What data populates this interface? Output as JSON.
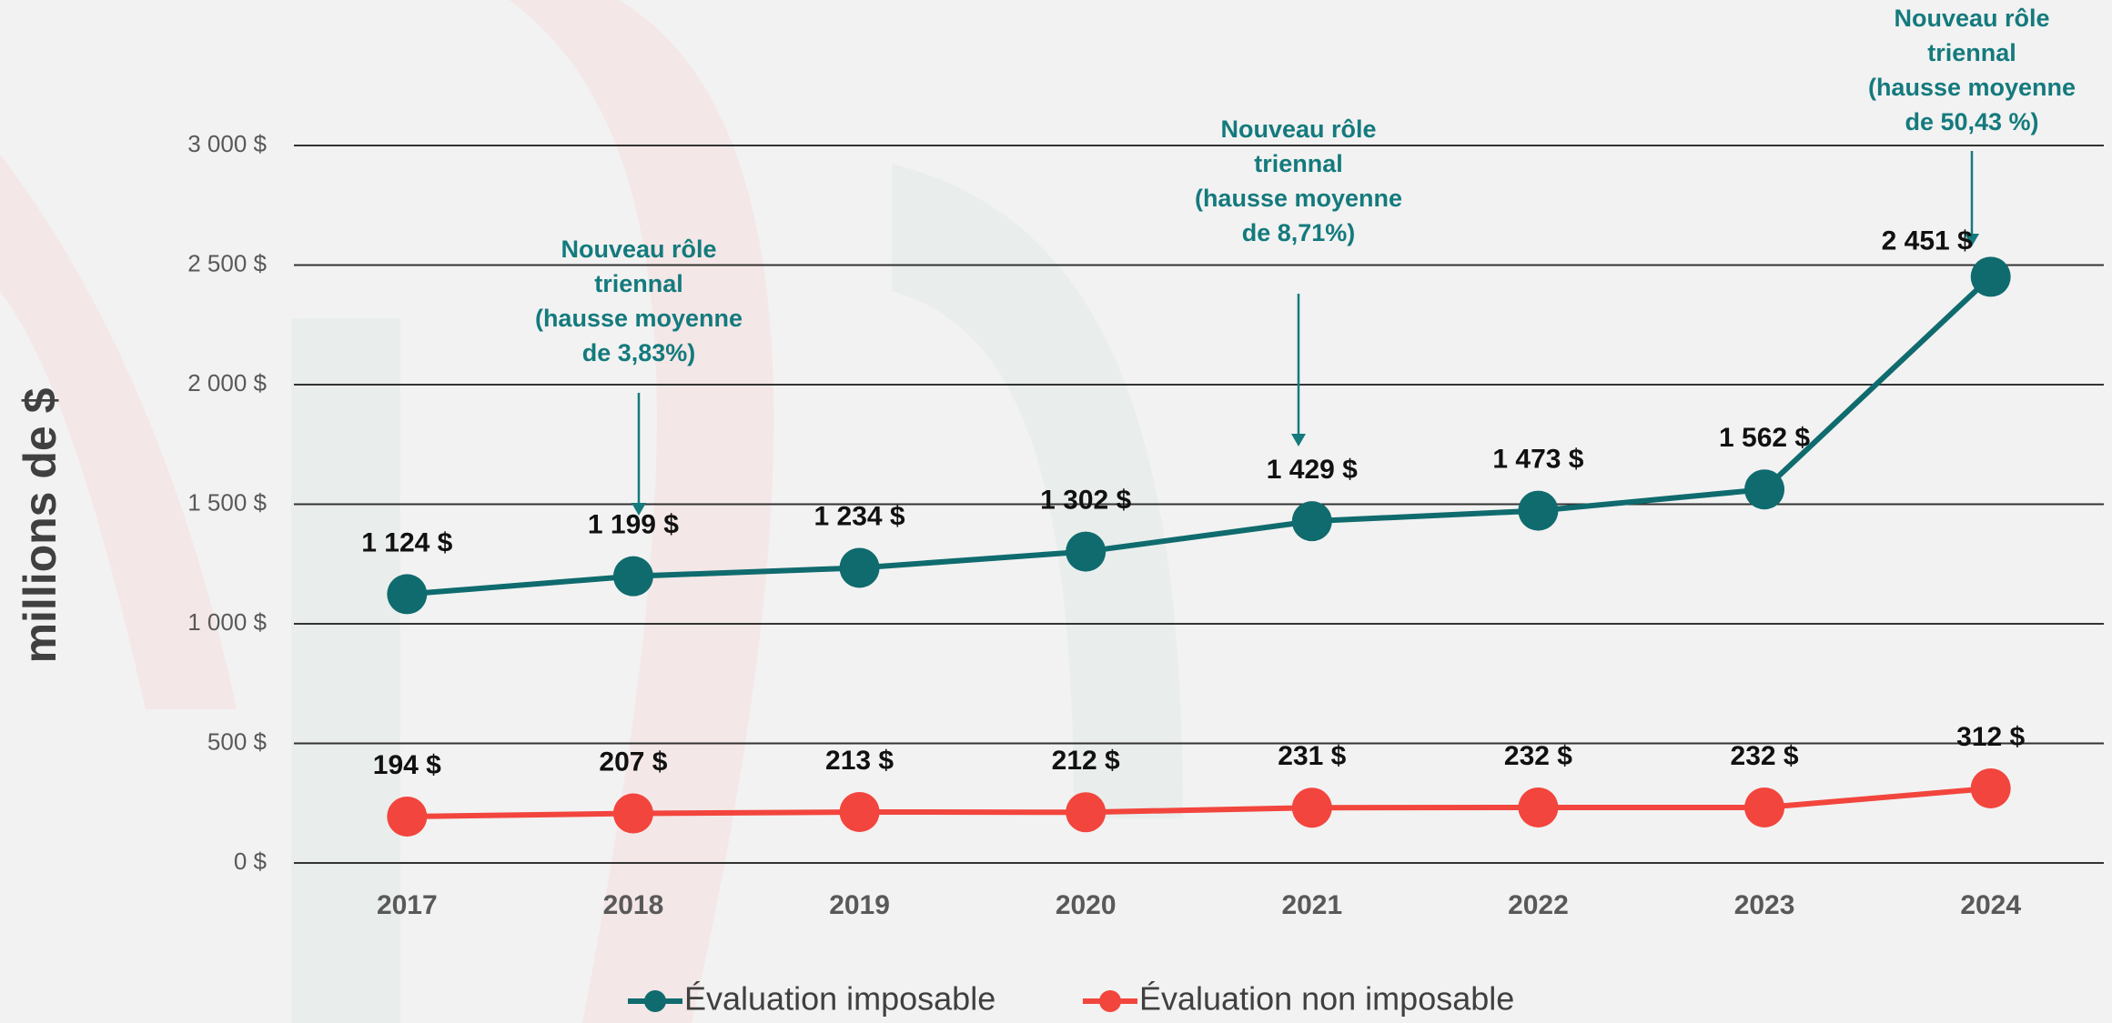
{
  "chart_data": {
    "type": "line",
    "y_label": "millions de $",
    "categories": [
      "2017",
      "2018",
      "2019",
      "2020",
      "2021",
      "2022",
      "2023",
      "2024"
    ],
    "series": [
      {
        "name": "Évaluation imposable",
        "color": "#0f6b6e",
        "values": [
          1124,
          1199,
          1234,
          1302,
          1429,
          1473,
          1562,
          2451
        ],
        "value_labels": [
          "1 124 $",
          "1 199 $",
          "1 234 $",
          "1 302 $",
          "1 429 $",
          "1 473 $",
          "1 562 $",
          "2 451 $"
        ]
      },
      {
        "name": "Évaluation non imposable",
        "color": "#f2453d",
        "values": [
          194,
          207,
          213,
          212,
          231,
          232,
          232,
          312
        ],
        "value_labels": [
          "194 $",
          "207 $",
          "213 $",
          "212 $",
          "231 $",
          "232 $",
          "232 $",
          "312 $"
        ]
      }
    ],
    "ylim": [
      0,
      3000
    ],
    "yticks": [
      {
        "value": 0,
        "label": "0 $"
      },
      {
        "value": 500,
        "label": "500 $"
      },
      {
        "value": 1000,
        "label": "1 000 $"
      },
      {
        "value": 1500,
        "label": "1 500 $"
      },
      {
        "value": 2000,
        "label": "2 000 $"
      },
      {
        "value": 2500,
        "label": "2 500 $"
      },
      {
        "value": 3000,
        "label": "3 000 $"
      }
    ],
    "grid": true,
    "legend": "bottom",
    "annotations": [
      {
        "lines": [
          "Nouveau rôle",
          "triennal",
          "(hausse moyenne",
          "de 3,83%)"
        ]
      },
      {
        "lines": [
          "Nouveau rôle",
          "triennal",
          "(hausse moyenne",
          "de 8,71%)"
        ]
      },
      {
        "lines": [
          "Nouveau rôle",
          "triennal",
          "(hausse moyenne",
          "de 50,43 %)"
        ]
      }
    ]
  }
}
